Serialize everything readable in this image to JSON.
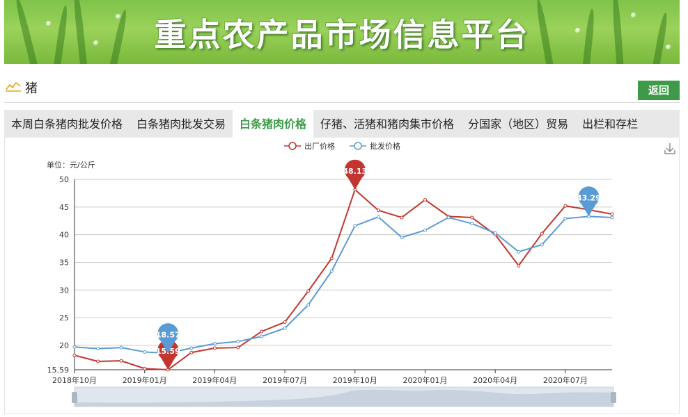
{
  "banner": {
    "title": "重点农产品市场信息平台"
  },
  "section": {
    "title": "猪",
    "back_label": "返回"
  },
  "tabs": [
    {
      "label": "本周白条猪肉批发价格",
      "active": false
    },
    {
      "label": "白条猪肉批发交易",
      "active": false
    },
    {
      "label": "白条猪肉价格",
      "active": true
    },
    {
      "label": "仔猪、活猪和猪肉集市价格",
      "active": false
    },
    {
      "label": "分国家（地区）贸易",
      "active": false
    },
    {
      "label": "出栏和存栏",
      "active": false
    }
  ],
  "chart_data": {
    "type": "line",
    "unit_label": "单位：元/公斤",
    "x": [
      "2018年10月",
      "2018年11月",
      "2018年12月",
      "2019年01月",
      "2019年02月",
      "2019年03月",
      "2019年04月",
      "2019年05月",
      "2019年06月",
      "2019年07月",
      "2019年08月",
      "2019年09月",
      "2019年10月",
      "2019年11月",
      "2019年12月",
      "2020年01月",
      "2020年02月",
      "2020年03月",
      "2020年04月",
      "2020年05月",
      "2020年06月",
      "2020年07月",
      "2020年08月",
      "2020年09月"
    ],
    "x_tick_labels": [
      "2018年10月",
      "2019年01月",
      "2019年04月",
      "2019年07月",
      "2019年10月",
      "2020年01月",
      "2020年04月",
      "2020年07月"
    ],
    "ylim": [
      15.59,
      50
    ],
    "y_tick_labels": [
      "15.59",
      "20",
      "25",
      "30",
      "35",
      "40",
      "45",
      "50"
    ],
    "grid": true,
    "legend_position": "top-center",
    "series": [
      {
        "name": "出厂价格",
        "color": "#c23531",
        "values": [
          18.2,
          17.1,
          17.2,
          15.8,
          15.59,
          18.7,
          19.5,
          19.6,
          22.5,
          24.2,
          29.8,
          35.7,
          48.13,
          44.4,
          43.1,
          46.3,
          43.3,
          43.1,
          40.0,
          34.4,
          40.2,
          45.2,
          44.5,
          43.7
        ]
      },
      {
        "name": "批发价格",
        "color": "#5b9bd5",
        "values": [
          19.7,
          19.4,
          19.6,
          18.8,
          18.57,
          19.5,
          20.3,
          20.7,
          21.6,
          23.1,
          27.3,
          33.4,
          41.6,
          43.2,
          39.5,
          40.8,
          43.1,
          42.0,
          40.3,
          36.9,
          38.2,
          42.9,
          43.29,
          43.1
        ]
      }
    ],
    "markers": [
      {
        "series": 0,
        "index": 4,
        "label": "15.59"
      },
      {
        "series": 0,
        "index": 12,
        "label": "48.13"
      },
      {
        "series": 1,
        "index": 4,
        "label": "18.57"
      },
      {
        "series": 1,
        "index": 22,
        "label": "43.29"
      }
    ]
  }
}
